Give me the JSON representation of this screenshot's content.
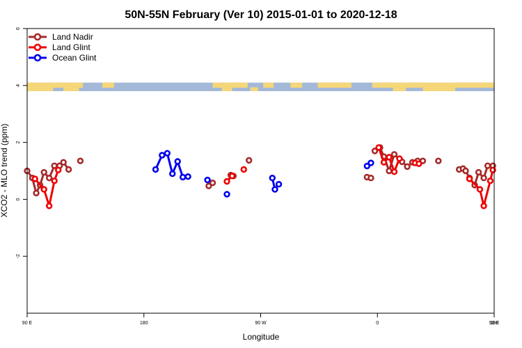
{
  "chart_data": {
    "type": "line",
    "title": "50N-55N February (Ver 10)   2015-01-01 to 2020-12-18",
    "xlabel": "Longitude",
    "ylabel": "XCO2 - MLO trend (ppm)",
    "xlim": [
      90,
      450
    ],
    "ylim": [
      -4,
      6
    ],
    "x_ticks": [
      {
        "value": 90,
        "label": "90 E"
      },
      {
        "value": 180,
        "label": "180"
      },
      {
        "value": 270,
        "label": "90 W"
      },
      {
        "value": 360,
        "label": "0"
      },
      {
        "value": 450,
        "label": "90 E"
      },
      {
        "value": 540,
        "label": "180"
      }
    ],
    "y_ticks": [
      {
        "value": -2,
        "label": "-2"
      },
      {
        "value": 0,
        "label": "0"
      },
      {
        "value": 2,
        "label": "2"
      },
      {
        "value": 4,
        "label": "4"
      },
      {
        "value": 6,
        "label": "6"
      }
    ],
    "map_strip": {
      "y_min": 3.8,
      "y_max": 4.1,
      "land_color": "#f5d77a",
      "ocean_color": "#a4b8d8"
    },
    "legend": {
      "position": "top-left"
    },
    "series": [
      {
        "name": "Land Nadir",
        "color": "#a52a2a",
        "segments": [
          [
            [
              90,
              1.0
            ],
            [
              94,
              0.75
            ],
            [
              97,
              0.22
            ],
            [
              100,
              0.5
            ],
            [
              103,
              0.95
            ],
            [
              107,
              0.75
            ],
            [
              111,
              1.18
            ],
            [
              115,
              1.18
            ],
            [
              118,
              1.3
            ],
            [
              122,
              1.05
            ]
          ],
          [
            [
              131,
              1.35
            ]
          ],
          [
            [
              230,
              0.47
            ],
            [
              233,
              0.58
            ]
          ],
          [
            [
              247,
              0.85
            ],
            [
              249,
              0.82
            ]
          ],
          [
            [
              261,
              1.37
            ]
          ],
          [
            [
              352,
              0.78
            ],
            [
              355,
              0.75
            ]
          ],
          [
            [
              358,
              1.7
            ],
            [
              362,
              1.82
            ],
            [
              365,
              1.5
            ],
            [
              369,
              1.0
            ],
            [
              373,
              1.58
            ],
            [
              379,
              1.32
            ],
            [
              383,
              1.15
            ],
            [
              387,
              1.3
            ],
            [
              391,
              1.35
            ],
            [
              395,
              1.35
            ]
          ],
          [
            [
              407,
              1.35
            ]
          ],
          [
            [
              423,
              1.05
            ],
            [
              426,
              1.08
            ],
            [
              428,
              1.0
            ],
            [
              431,
              0.75
            ],
            [
              435,
              0.5
            ],
            [
              438,
              0.95
            ],
            [
              442,
              0.75
            ],
            [
              445,
              1.18
            ],
            [
              449,
              1.18
            ]
          ]
        ]
      },
      {
        "name": "Land Glint",
        "color": "#ee0000",
        "segments": [
          [
            [
              96,
              0.72
            ],
            [
              103,
              0.35
            ],
            [
              107,
              -0.23
            ],
            [
              111,
              0.65
            ],
            [
              114,
              1.03
            ]
          ],
          [
            [
              257,
              1.05
            ]
          ],
          [
            [
              244,
              0.63
            ],
            [
              248,
              0.82
            ]
          ],
          [
            [
              361,
              1.82
            ],
            [
              365,
              1.3
            ],
            [
              369,
              1.48
            ],
            [
              373,
              0.97
            ],
            [
              377,
              1.43
            ]
          ],
          [
            [
              389,
              1.28
            ],
            [
              392,
              1.25
            ]
          ],
          [
            [
              431,
              0.72
            ],
            [
              439,
              0.35
            ],
            [
              442,
              -0.23
            ],
            [
              447,
              0.65
            ],
            [
              449,
              1.03
            ]
          ]
        ]
      },
      {
        "name": "Ocean Glint",
        "color": "#0000ee",
        "segments": [
          [
            [
              189,
              1.05
            ],
            [
              194,
              1.55
            ],
            [
              198,
              1.62
            ],
            [
              202,
              0.9
            ],
            [
              206,
              1.33
            ],
            [
              210,
              0.78
            ],
            [
              214,
              0.8
            ]
          ],
          [
            [
              229,
              0.68
            ]
          ],
          [
            [
              244,
              0.18
            ]
          ],
          [
            [
              279,
              0.75
            ],
            [
              281,
              0.35
            ],
            [
              284,
              0.53
            ]
          ],
          [
            [
              352,
              1.17
            ],
            [
              355,
              1.28
            ]
          ]
        ]
      }
    ]
  }
}
